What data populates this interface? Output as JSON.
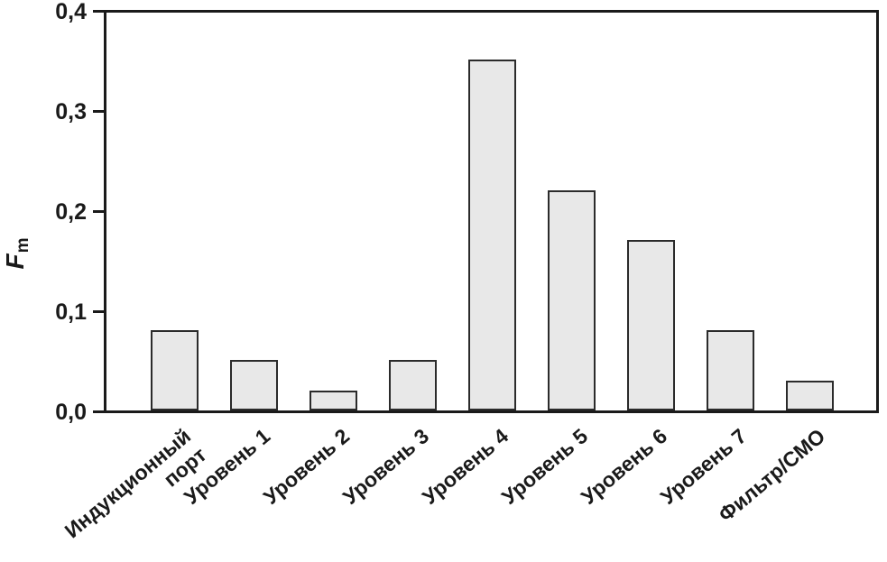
{
  "figure": {
    "background": "#ffffff"
  },
  "chart_data": {
    "type": "bar",
    "title": "",
    "xlabel": "",
    "ylabel_symbol": "F",
    "ylabel_subscript": "m",
    "categories": [
      "Индукционный\nпорт",
      "Уровень 1",
      "Уровень 2",
      "Уровень 3",
      "Уровень 4",
      "Уровень 5",
      "Уровень 6",
      "Уровень 7",
      "Фильтр/СМО"
    ],
    "values": [
      0.08,
      0.05,
      0.02,
      0.05,
      0.35,
      0.22,
      0.17,
      0.08,
      0.03
    ],
    "ylim": [
      0.0,
      0.4
    ],
    "ytick_values": [
      0.0,
      0.1,
      0.2,
      0.3,
      0.4
    ],
    "ytick_labels": [
      "0,0",
      "0,1",
      "0,2",
      "0,3",
      "0,4"
    ],
    "grid": false,
    "legend": false,
    "x_label_rotation_deg": -40,
    "bar_fill_color": "#e8e8e8",
    "bar_border_color": "#2b2b2b",
    "axis_color": "#1a1a1a",
    "text_color": "#1a1a1a"
  }
}
